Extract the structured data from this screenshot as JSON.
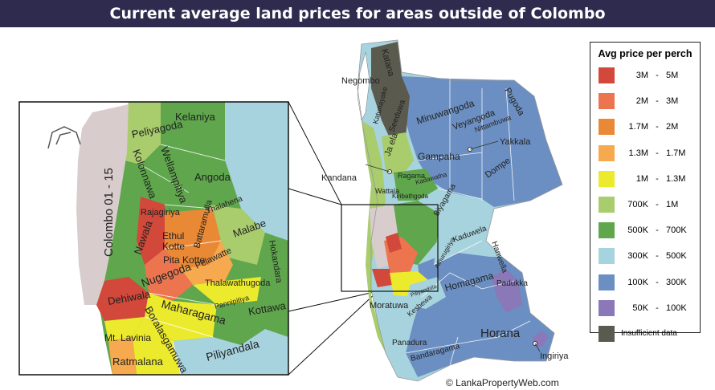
{
  "title": "Current average land prices for areas outside of Colombo",
  "legend": {
    "title": "Avg price per perch",
    "items": [
      {
        "lo": "3M",
        "hi": "5M",
        "color": "#d2483a"
      },
      {
        "lo": "2M",
        "hi": "3M",
        "color": "#ec7550"
      },
      {
        "lo": "1.7M",
        "hi": "2M",
        "color": "#e98936"
      },
      {
        "lo": "1.3M",
        "hi": "1.7M",
        "color": "#f6a94f"
      },
      {
        "lo": "1M",
        "hi": "1.3M",
        "color": "#ecea2c"
      },
      {
        "lo": "700K",
        "hi": "1M",
        "color": "#a9cc6c"
      },
      {
        "lo": "500K",
        "hi": "700K",
        "color": "#5fa64c"
      },
      {
        "lo": "300K",
        "hi": "500K",
        "color": "#a7d3de"
      },
      {
        "lo": "100K",
        "hi": "300K",
        "color": "#6b8fc2"
      },
      {
        "lo": "50K",
        "hi": "100K",
        "color": "#8a78b8"
      },
      {
        "label": "Insufficient data",
        "color": "#5a5a4f"
      }
    ]
  },
  "inset_labels": {
    "colombo": "Colombo 01 - 15",
    "kelaniya": "Kelaniya",
    "peliyagoda": "Peliyagoda",
    "kolonnawa": "Kolonnawa",
    "wellampitiya": "Wellampitiya",
    "angoda": "Angoda",
    "rajagiriya": "Rajagiriya",
    "nawala": "Nawala",
    "ethul_kotte": "Ethul\nKotte",
    "pita_kotte": "Pita Kotte",
    "battaramulla": "Battaramulla",
    "thalahena": "Thalahena",
    "malabe": "Malabe",
    "hokandara": "Hokandara",
    "pelawatte": "Pelawatte",
    "nugegoda": "Nugegoda",
    "thalawathugoda": "Thalawathugoda",
    "dehiwala": "Dehiwala",
    "maharagama": "Maharagama",
    "pannipitiya": "Pannipitiya",
    "kottawa": "Kottawa",
    "boralasgamuwa": "Boralasgamuwa",
    "mt_lavinia": "Mt. Lavinia",
    "ratmalana": "Ratmalana",
    "piliyandala": "Piliyandala"
  },
  "main_labels": {
    "katana": "Katana",
    "negombo": "Negombo",
    "katunayake": "Katunayake",
    "seeduwa": "Seeduwa",
    "minuwangoda": "Minuwangoda",
    "pugoda": "Pugoda",
    "veyangoda": "Veyangoda",
    "nittambuwa": "Nittambuwa",
    "ja_ela": "Ja ela",
    "gampaha": "Gampaha",
    "yakkala": "Yakkala",
    "kandana": "Kandana",
    "ragama": "Ragama",
    "kadawatha": "Kadawatha",
    "dompe": "Dompe",
    "wattala": "Wattala",
    "kiribathgoda": "Kiribathgoda",
    "biyagama": "Biyagama",
    "kaduwela": "Kaduwela",
    "hanwella": "Hanwella",
    "athurugiriya": "Athurugiriya",
    "padukka": "Padukka",
    "homagama": "Homagama",
    "moratuwa": "Moratuwa",
    "piliyandala": "Piliyandala",
    "kesbewa": "Kesbewa",
    "horana": "Horana",
    "panadura": "Panadura",
    "bandaragama": "Bandaragama",
    "ingiriya": "Ingiriya"
  },
  "copyright": "© LankaPropertyWeb.com"
}
